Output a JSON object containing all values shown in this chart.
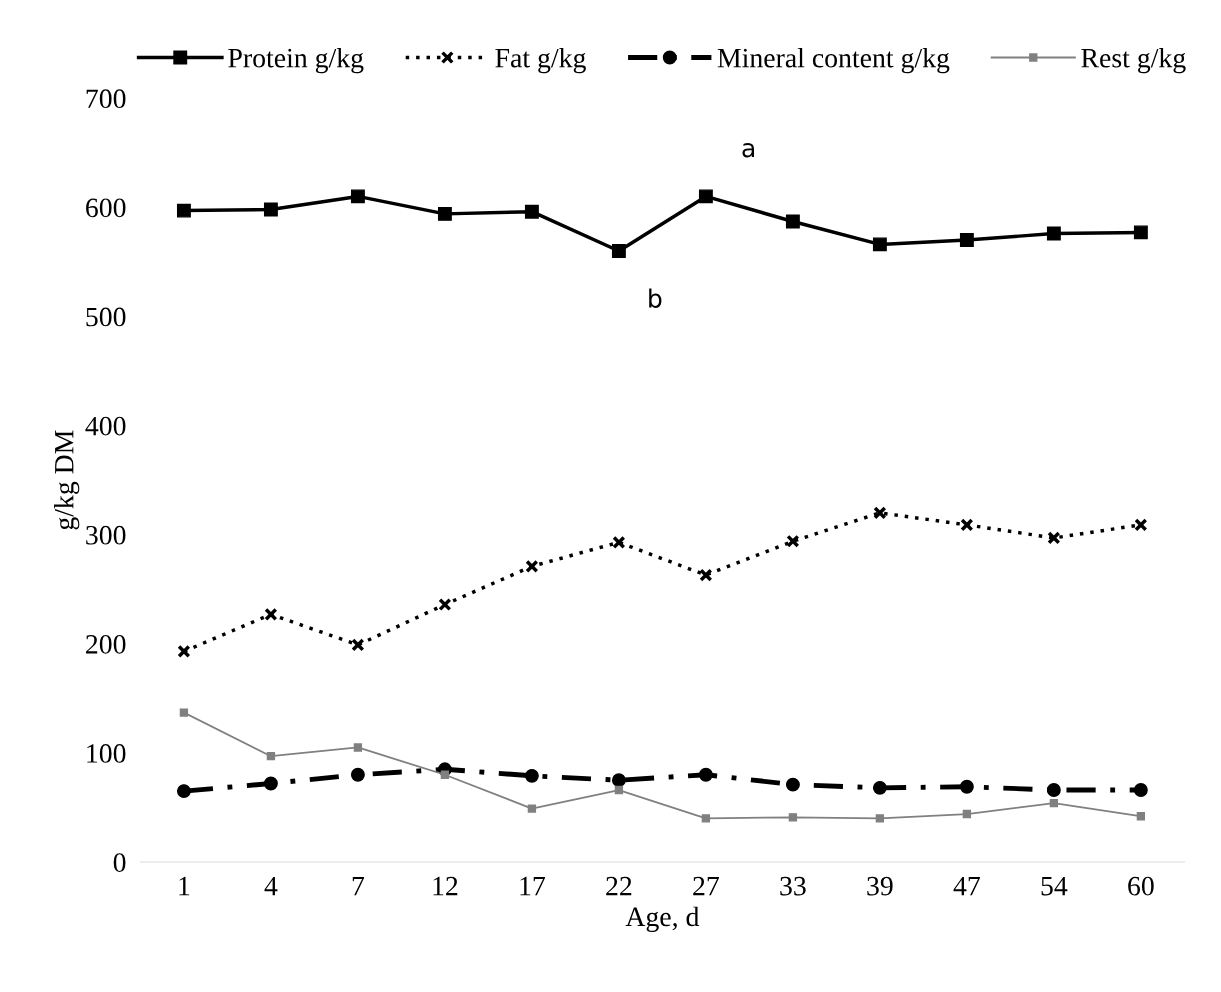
{
  "chart_data": {
    "type": "line",
    "xlabel": "Age, d",
    "ylabel": "g/kg DM",
    "categories": [
      "1",
      "4",
      "7",
      "12",
      "17",
      "22",
      "27",
      "33",
      "39",
      "47",
      "54",
      "60"
    ],
    "series": [
      {
        "name": "Protein g/kg",
        "color": "#000000",
        "marker": "square",
        "line_style": "solid",
        "values": [
          597,
          598,
          610,
          594,
          596,
          560,
          610,
          587,
          566,
          570,
          576,
          577
        ]
      },
      {
        "name": "Fat g/kg",
        "color": "#000000",
        "marker": "cross",
        "line_style": "dotted",
        "values": [
          193,
          227,
          199,
          236,
          271,
          293,
          263,
          294,
          320,
          309,
          297,
          309
        ]
      },
      {
        "name": "Mineral content g/kg",
        "color": "#000000",
        "marker": "circle",
        "line_style": "dashdot",
        "values": [
          65,
          72,
          80,
          85,
          79,
          75,
          80,
          71,
          68,
          69,
          66,
          66
        ]
      },
      {
        "name": "Rest g/kg",
        "color": "#808080",
        "marker": "square",
        "line_style": "solid",
        "values": [
          137,
          97,
          105,
          80,
          49,
          66,
          40,
          41,
          40,
          44,
          54,
          42
        ]
      }
    ],
    "ylim": [
      0,
      700
    ],
    "yticks": [
      0,
      100,
      200,
      300,
      400,
      500,
      600,
      700
    ],
    "annotations": [
      "a",
      "b"
    ],
    "grid": false,
    "legend": "top"
  }
}
